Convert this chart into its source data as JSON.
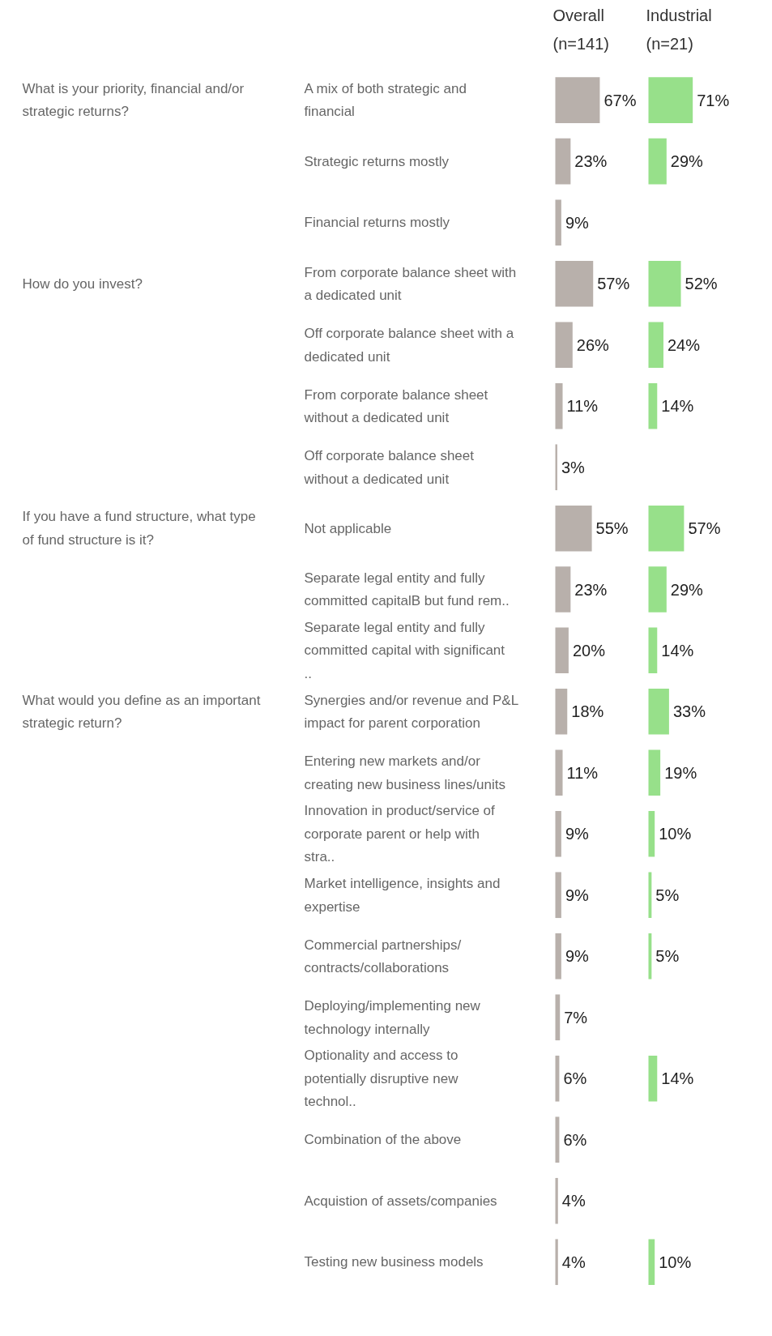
{
  "chart_data": [
    {
      "type": "bar",
      "orientation": "horizontal",
      "annotations": [
        "What is your priority, financial and/or strategic returns?"
      ],
      "categories": [
        "A mix of both strategic and financial",
        "Strategic returns mostly",
        "Financial returns mostly"
      ],
      "series": [
        {
          "name": "Overall (n=141)",
          "color": "#b8b0ab",
          "values": [
            67,
            23,
            9
          ],
          "value_labels": [
            "67%",
            "23%",
            "9%"
          ]
        }
      ]
    },
    {
      "type": "bar",
      "orientation": "horizontal",
      "tick_labels": false,
      "categories": [
        "A mix of both strategic and financial",
        "Strategic returns mostly",
        "Financial returns mostly"
      ],
      "series": [
        {
          "name": "Industrial (n=21)",
          "color": "#97e08a",
          "values": [
            71,
            29,
            null
          ],
          "value_labels": [
            "71%",
            "29%",
            null
          ]
        }
      ]
    },
    {
      "type": "bar",
      "orientation": "horizontal",
      "annotations": [
        "How do you invest?"
      ],
      "categories": [
        "From corporate balance sheet with a dedicated unit",
        "Off corporate balance sheet with a dedicated unit",
        "From corporate balance sheet without a dedicated unit",
        "Off corporate balance sheet without a dedicated unit"
      ],
      "series": [
        {
          "color": "#b8b0ab",
          "values": [
            57,
            26,
            11,
            3
          ],
          "value_labels": [
            "57%",
            "26%",
            "11%",
            "3%"
          ]
        }
      ]
    },
    {
      "type": "bar",
      "orientation": "horizontal",
      "tick_labels": false,
      "categories": [
        "From corporate balance sheet with a dedicated unit",
        "Off corporate balance sheet with a dedicated unit",
        "From corporate balance sheet without a dedicated unit",
        "Off corporate balance sheet without a dedicated unit"
      ],
      "series": [
        {
          "color": "#97e08a",
          "values": [
            52,
            24,
            14,
            null
          ],
          "value_labels": [
            "52%",
            "24%",
            "14%",
            null
          ]
        }
      ]
    },
    {
      "type": "bar",
      "orientation": "horizontal",
      "annotations": [
        "If you have a fund structure, what type of fund structure is it?"
      ],
      "categories": [
        "Not applicable",
        "Separate legal entity and fully committed capitalB  but fund rem..",
        "Separate legal entity and fully committed capital with significant .."
      ],
      "series": [
        {
          "color": "#b8b0ab",
          "values": [
            55,
            23,
            20
          ],
          "value_labels": [
            "55%",
            "23%",
            "20%"
          ]
        }
      ]
    },
    {
      "type": "bar",
      "orientation": "horizontal",
      "tick_labels": false,
      "categories": [
        "Not applicable",
        "Separate legal entity and fully committed capitalB  but fund rem..",
        "Separate legal entity and fully committed capital with significant .."
      ],
      "series": [
        {
          "color": "#97e08a",
          "values": [
            57,
            29,
            14
          ],
          "value_labels": [
            "57%",
            "29%",
            "14%"
          ]
        }
      ]
    },
    {
      "type": "bar",
      "orientation": "horizontal",
      "annotations": [
        "What would you define as an important strategic return?"
      ],
      "categories": [
        "Synergies and/or revenue and P&L impact for parent corporation",
        "Entering new markets and/or creating new business lines/units",
        "Innovation in product/service of corporate parent or help with stra..",
        "Market intelligence, insights and expertise",
        "Commercial partnerships/ contracts/collaborations",
        "Deploying/implementing new technology internally",
        "Optionality and access to potentially disruptive new technol..",
        "Combination of the above",
        "Acquistion of assets/companies",
        "Testing new business models"
      ],
      "series": [
        {
          "color": "#b8b0ab",
          "values": [
            18,
            11,
            9,
            9,
            9,
            7,
            6,
            6,
            4,
            4
          ],
          "value_labels": [
            "18%",
            "11%",
            "9%",
            "9%",
            "9%",
            "7%",
            "6%",
            "6%",
            "4%",
            "4%"
          ]
        }
      ]
    },
    {
      "type": "bar",
      "orientation": "horizontal",
      "tick_labels": false,
      "categories": [
        "Synergies and/or revenue and P&L impact for parent corporation",
        "Entering new markets and/or creating new business lines/units",
        "Innovation in product/service of corporate parent or help with stra..",
        "Market intelligence, insights and expertise",
        "Commercial partnerships/ contracts/collaborations",
        "Deploying/implementing new technology internally",
        "Optionality and access to potentially disruptive new technol..",
        "Combination of the above",
        "Acquistion of assets/companies",
        "Testing new business models"
      ],
      "series": [
        {
          "color": "#97e08a",
          "values": [
            33,
            19,
            10,
            5,
            5,
            null,
            14,
            null,
            null,
            10
          ],
          "value_labels": [
            "33%",
            "19%",
            "10%",
            "5%",
            "5%",
            null,
            "14%",
            null,
            null,
            "10%"
          ]
        }
      ]
    }
  ]
}
